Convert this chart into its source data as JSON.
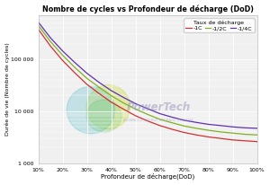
{
  "title": "Nombre de cycles vs Profondeur de décharge (DoD)",
  "xlabel": "Profondeur de décharge(DoD)",
  "ylabel": "Durée de vie (Nombre de cycles)",
  "legend_title": "Taux de décharge",
  "legend_labels": [
    "-1C",
    "-1/2C",
    "-1/4C"
  ],
  "line_colors": [
    "#d43030",
    "#80b020",
    "#6030b0"
  ],
  "x_ticks": [
    0.1,
    0.2,
    0.3,
    0.4,
    0.5,
    0.6,
    0.7,
    0.8,
    0.9,
    1.0
  ],
  "x_tick_labels": [
    "10%",
    "20%",
    "30%",
    "40%",
    "50%",
    "60%",
    "70%",
    "80%",
    "90%",
    "100%"
  ],
  "ylim_log": [
    1000,
    700000
  ],
  "y_ticks": [
    1000,
    10000,
    100000
  ],
  "y_tick_labels": [
    "1 000",
    "10 000",
    "100 000"
  ],
  "background_color": "#f0f0f0",
  "dod_values": [
    0.1,
    0.15,
    0.2,
    0.25,
    0.3,
    0.35,
    0.4,
    0.45,
    0.5,
    0.55,
    0.6,
    0.65,
    0.7,
    0.75,
    0.8,
    0.85,
    0.9,
    0.95,
    1.0
  ],
  "cycles_1C": [
    380000,
    180000,
    95000,
    55000,
    33000,
    22000,
    15000,
    11000,
    8200,
    6500,
    5300,
    4500,
    3900,
    3500,
    3200,
    3000,
    2800,
    2700,
    2600
  ],
  "cycles_half": [
    450000,
    220000,
    120000,
    70000,
    43000,
    29000,
    20000,
    14500,
    11000,
    8700,
    7000,
    6000,
    5200,
    4700,
    4300,
    4000,
    3800,
    3600,
    3500
  ],
  "cycles_quarter": [
    520000,
    260000,
    145000,
    87000,
    54000,
    36000,
    25000,
    18500,
    14000,
    11200,
    9000,
    7700,
    6700,
    6100,
    5600,
    5300,
    5000,
    4800,
    4700
  ]
}
